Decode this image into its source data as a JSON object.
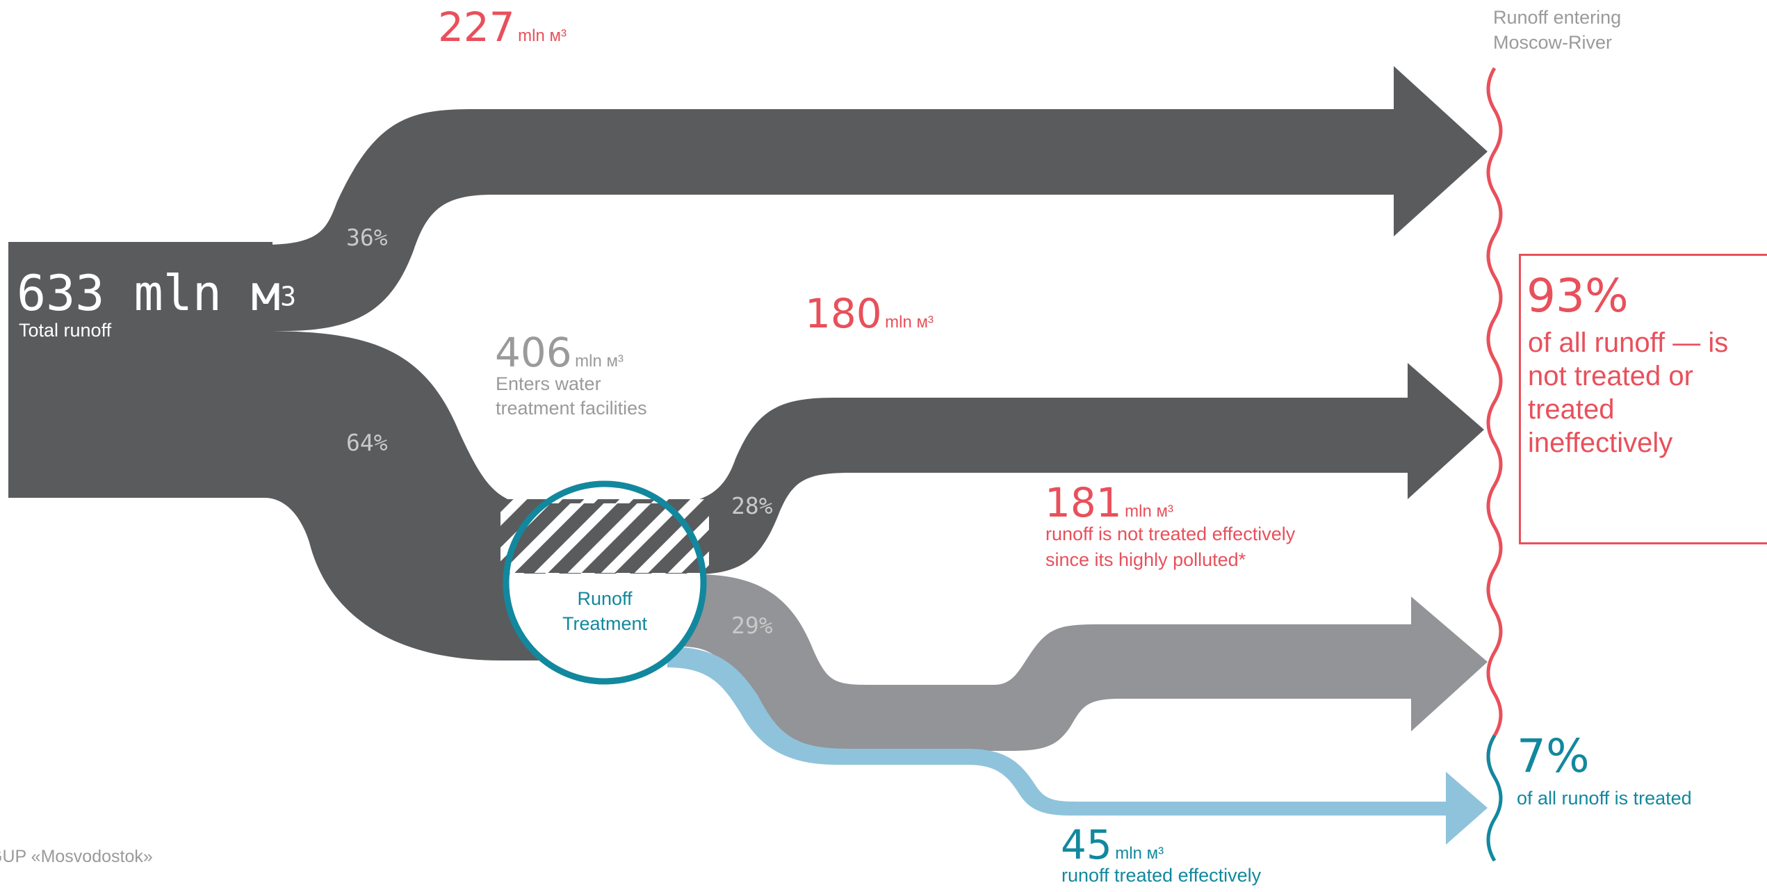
{
  "colors": {
    "dark_flow": "#5a5b5d",
    "mid_flow": "#939497",
    "light_flow": "#8fc3dc",
    "accent_red": "#e8505b",
    "accent_teal": "#12889e",
    "muted_text": "#9a9a9a"
  },
  "source": {
    "value": "633 mln м",
    "superscript": "3",
    "label": "Total runoff"
  },
  "flows": {
    "top": {
      "value": "227",
      "unit": "mln м³",
      "share": "36%"
    },
    "treatment_input": {
      "value": "406",
      "unit": "mln м³",
      "label_line1": "Enters water",
      "label_line2": "treatment facilities",
      "share": "64%"
    },
    "untreated_middle": {
      "value": "180",
      "unit": "mln м³",
      "share": "28%"
    },
    "ineffective": {
      "value": "181",
      "unit": "mln м³",
      "label_line1": "runoff is not treated effectively",
      "label_line2": "since its highly polluted*",
      "share": "29%"
    },
    "treated": {
      "value": "45",
      "unit": "mln м³",
      "label": "runoff treated effectively"
    }
  },
  "treatment_node": {
    "line1": "Runoff",
    "line2": "Treatment"
  },
  "river": {
    "line1": "Runoff entering",
    "line2": "Moscow-River"
  },
  "summary_untreated": {
    "percent": "93%",
    "line1": "of all runoff — is",
    "line2": "not treated or",
    "line3": "treated",
    "line4": "ineffectively"
  },
  "summary_treated": {
    "percent": "7%",
    "label": "of all runoff is treated"
  },
  "source_note": "GUP «Mosvodostok»",
  "chart_data": {
    "type": "sankey",
    "unit": "mln м³",
    "nodes": [
      "Total runoff",
      "Runoff Treatment",
      "Runoff entering Moscow-River"
    ],
    "links": [
      {
        "source": "Total runoff",
        "target": "Runoff entering Moscow-River",
        "value": 227,
        "share": "36%"
      },
      {
        "source": "Total runoff",
        "target": "Runoff Treatment",
        "value": 406,
        "share": "64%"
      },
      {
        "source": "Runoff Treatment",
        "target": "Runoff entering Moscow-River",
        "value": 180,
        "share": "28%"
      },
      {
        "source": "Runoff Treatment",
        "target": "Runoff entering Moscow-River",
        "value": 181,
        "share": "29%"
      },
      {
        "source": "Runoff Treatment",
        "target": "Runoff entering Moscow-River",
        "value": 45
      }
    ],
    "total": 633,
    "untreated_share": "93%",
    "treated_share": "7%"
  }
}
